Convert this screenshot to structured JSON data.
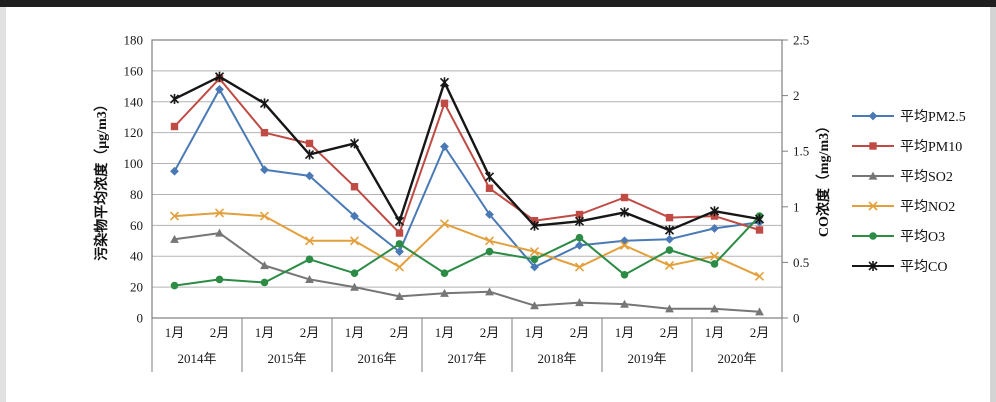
{
  "figure": {
    "background": "#ffffff",
    "letterbox_color": "#1f1f1f"
  },
  "chart_data": {
    "type": "line",
    "title": "",
    "grid": true,
    "legend_position": "right",
    "x": {
      "group_labels": [
        "2014年",
        "2015年",
        "2016年",
        "2017年",
        "2018年",
        "2019年",
        "2020年"
      ],
      "month_labels": [
        "1月",
        "2月"
      ]
    },
    "y_left": {
      "label": "污染物平均浓度（μg/m3）",
      "min": 0,
      "max": 180,
      "step": 20
    },
    "y_right": {
      "label": "CO浓度（mg/m3）",
      "min": 0,
      "max": 2.5,
      "step": 0.5
    },
    "series": [
      {
        "id": "pm25",
        "name": "平均PM2.5",
        "color": "#4a7ab5",
        "marker": "diamond",
        "axis": "left",
        "values": [
          95,
          148,
          96,
          92,
          66,
          43,
          111,
          67,
          33,
          47,
          50,
          51,
          58,
          62
        ]
      },
      {
        "id": "pm10",
        "name": "平均PM10",
        "color": "#bf4b44",
        "marker": "square",
        "axis": "left",
        "values": [
          124,
          155,
          120,
          113,
          85,
          55,
          139,
          84,
          63,
          67,
          78,
          65,
          66,
          57
        ]
      },
      {
        "id": "so2",
        "name": "平均SO2",
        "color": "#767676",
        "marker": "triangle",
        "axis": "left",
        "values": [
          51,
          55,
          34,
          25,
          20,
          14,
          16,
          17,
          8,
          10,
          9,
          6,
          6,
          4
        ]
      },
      {
        "id": "no2",
        "name": "平均NO2",
        "color": "#e2a03c",
        "marker": "x",
        "axis": "left",
        "values": [
          66,
          68,
          66,
          50,
          50,
          33,
          61,
          50,
          43,
          33,
          47,
          34,
          40,
          27
        ]
      },
      {
        "id": "o3",
        "name": "平均O3",
        "color": "#2c8b44",
        "marker": "dot",
        "axis": "left",
        "values": [
          21,
          25,
          23,
          38,
          29,
          48,
          29,
          43,
          38,
          52,
          28,
          44,
          35,
          66
        ]
      },
      {
        "id": "co",
        "name": "平均CO",
        "color": "#161616",
        "marker": "asterisk",
        "axis": "right",
        "values": [
          1.97,
          2.17,
          1.93,
          1.47,
          1.57,
          0.87,
          2.12,
          1.27,
          0.83,
          0.87,
          0.95,
          0.79,
          0.96,
          0.89
        ]
      }
    ]
  }
}
